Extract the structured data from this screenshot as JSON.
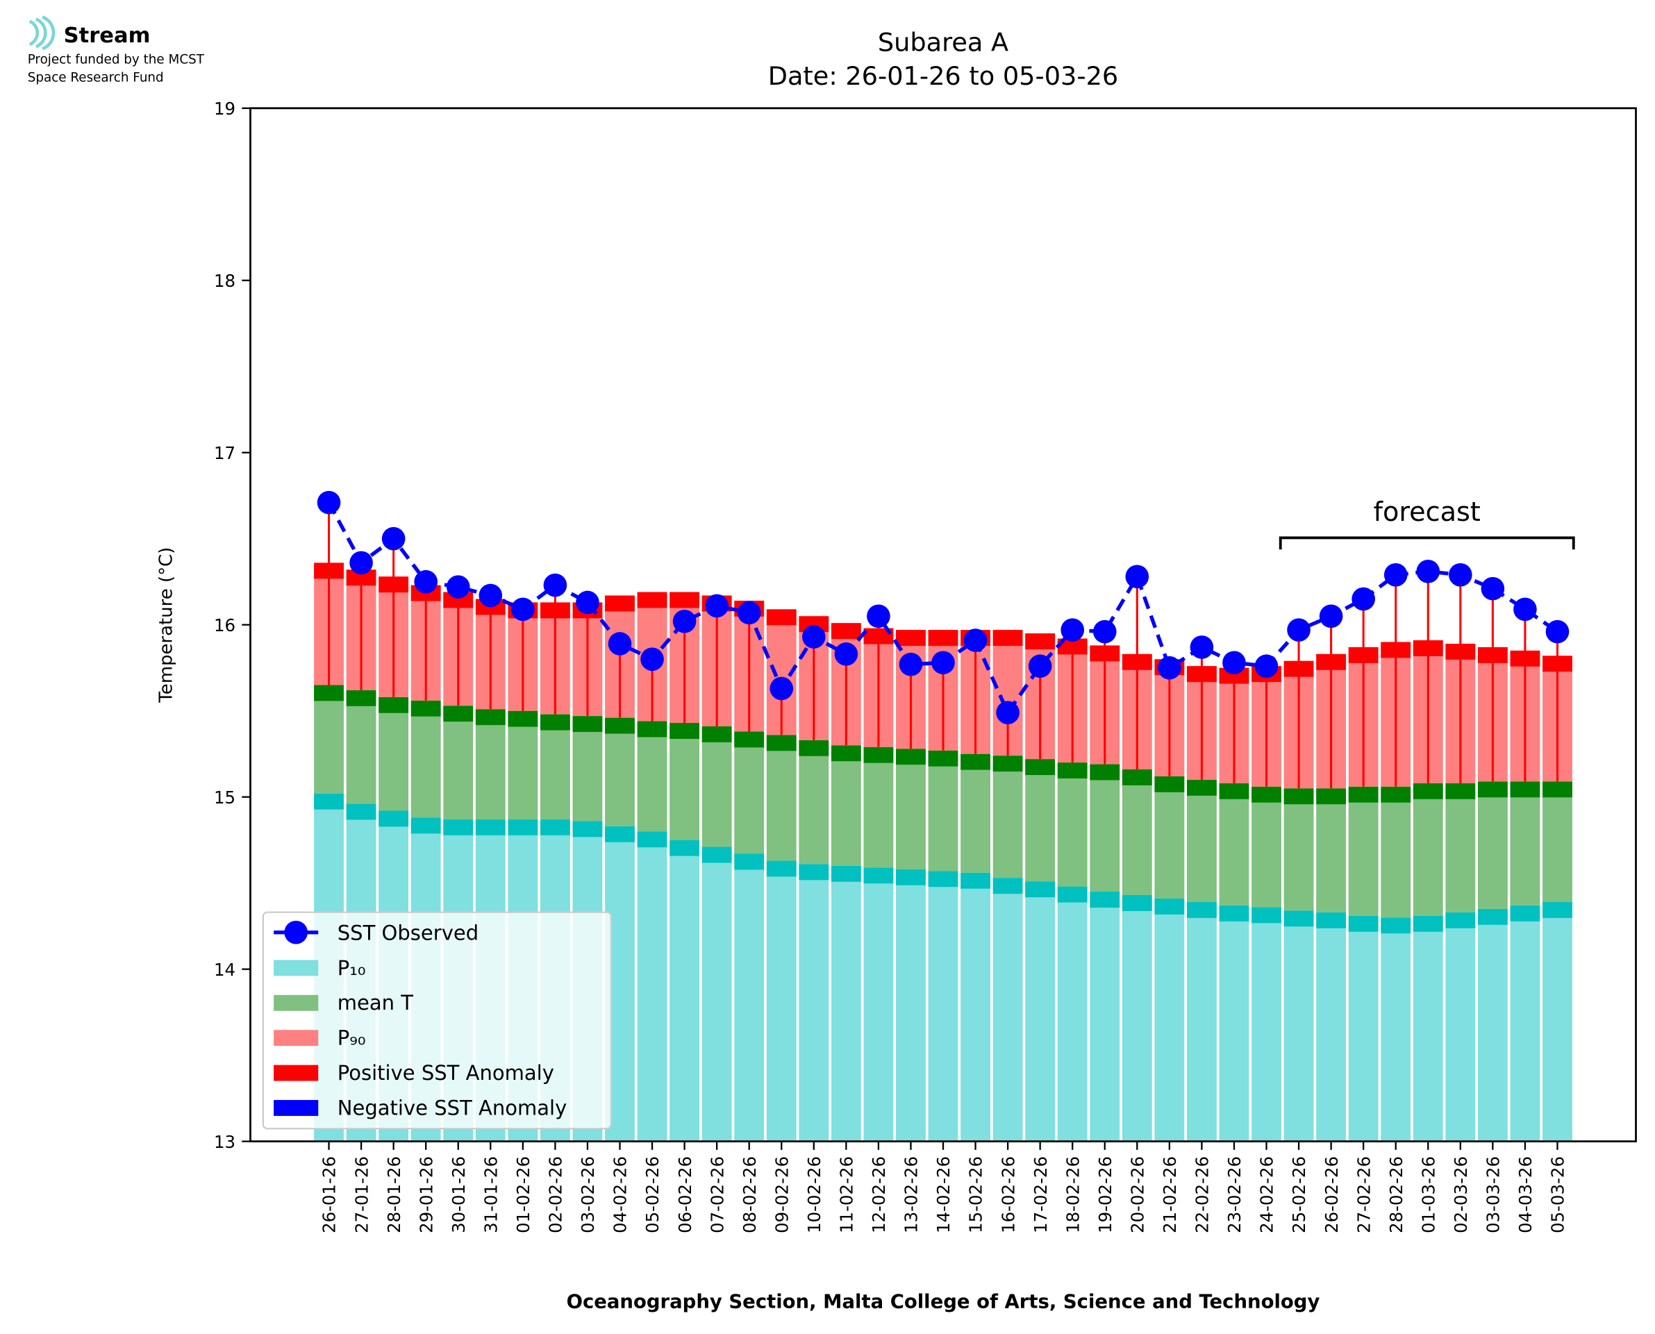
{
  "logo": {
    "name": "Stream",
    "lines": [
      "Project funded by the MCST",
      "Space Research Fund"
    ]
  },
  "chart_data": {
    "type": "bar",
    "title": [
      "Subarea A",
      "Date: 26-01-26 to 05-03-26"
    ],
    "y_label": "Temperature (°C)",
    "x_label": "Oceanography Section, Malta College of Arts, Science and Technology",
    "categories": [
      "26-01-26",
      "27-01-26",
      "28-01-26",
      "29-01-26",
      "30-01-26",
      "31-01-26",
      "01-02-26",
      "02-02-26",
      "03-02-26",
      "04-02-26",
      "05-02-26",
      "06-02-26",
      "07-02-26",
      "08-02-26",
      "09-02-26",
      "10-02-26",
      "11-02-26",
      "12-02-26",
      "13-02-26",
      "14-02-26",
      "15-02-26",
      "16-02-26",
      "17-02-26",
      "18-02-26",
      "19-02-26",
      "20-02-26",
      "21-02-26",
      "22-02-26",
      "23-02-26",
      "24-02-26",
      "25-02-26",
      "26-02-26",
      "27-02-26",
      "28-02-26",
      "01-03-26",
      "02-03-26",
      "03-03-26",
      "04-03-26",
      "05-03-26"
    ],
    "ylim": [
      13,
      19
    ],
    "yticks": [
      13,
      14,
      15,
      16,
      17,
      18,
      19
    ],
    "series": [
      {
        "name": "P₁₀",
        "color": "#80dfdf",
        "band_color": "#00c0c0",
        "values": [
          15.02,
          14.96,
          14.92,
          14.88,
          14.87,
          14.87,
          14.87,
          14.87,
          14.86,
          14.83,
          14.8,
          14.75,
          14.71,
          14.67,
          14.63,
          14.61,
          14.6,
          14.59,
          14.58,
          14.57,
          14.56,
          14.53,
          14.51,
          14.48,
          14.45,
          14.43,
          14.41,
          14.39,
          14.37,
          14.36,
          14.34,
          14.33,
          14.31,
          14.3,
          14.31,
          14.33,
          14.35,
          14.37,
          14.39
        ]
      },
      {
        "name": "mean T",
        "color": "#80c080",
        "band_color": "#008000",
        "values": [
          15.65,
          15.62,
          15.58,
          15.56,
          15.53,
          15.51,
          15.5,
          15.48,
          15.47,
          15.46,
          15.44,
          15.43,
          15.41,
          15.38,
          15.36,
          15.33,
          15.3,
          15.29,
          15.28,
          15.27,
          15.25,
          15.24,
          15.22,
          15.2,
          15.19,
          15.16,
          15.12,
          15.1,
          15.08,
          15.06,
          15.05,
          15.05,
          15.06,
          15.06,
          15.08,
          15.08,
          15.09,
          15.09,
          15.09
        ]
      },
      {
        "name": "P₉₀",
        "color": "#ff8080",
        "band_color": "#ff0000",
        "values": [
          16.36,
          16.32,
          16.28,
          16.23,
          16.19,
          16.15,
          16.13,
          16.13,
          16.13,
          16.17,
          16.19,
          16.19,
          16.17,
          16.14,
          16.09,
          16.05,
          16.01,
          15.98,
          15.97,
          15.97,
          15.97,
          15.97,
          15.95,
          15.92,
          15.88,
          15.83,
          15.8,
          15.76,
          15.75,
          15.76,
          15.79,
          15.83,
          15.87,
          15.9,
          15.91,
          15.89,
          15.87,
          15.85,
          15.82
        ]
      },
      {
        "name": "SST Observed",
        "color": "#0000ff",
        "values": [
          16.71,
          16.36,
          16.5,
          16.25,
          16.22,
          16.17,
          16.09,
          16.23,
          16.13,
          15.89,
          15.8,
          16.02,
          16.11,
          16.07,
          15.63,
          15.93,
          15.83,
          16.05,
          15.77,
          15.78,
          15.91,
          15.49,
          15.76,
          15.97,
          15.96,
          16.28,
          15.75,
          15.87,
          15.78,
          15.76,
          15.97,
          16.05,
          16.15,
          16.29,
          16.31,
          16.29,
          16.21,
          16.09,
          15.96
        ]
      }
    ],
    "anomaly": [
      {
        "name": "Positive SST Anomaly",
        "color": "#ff0000"
      },
      {
        "name": "Negative SST Anomaly",
        "color": "#0000ff"
      }
    ],
    "forecast": {
      "label": "forecast",
      "start": "25-02-26",
      "end": "05-03-26"
    },
    "legend": "lower left"
  }
}
